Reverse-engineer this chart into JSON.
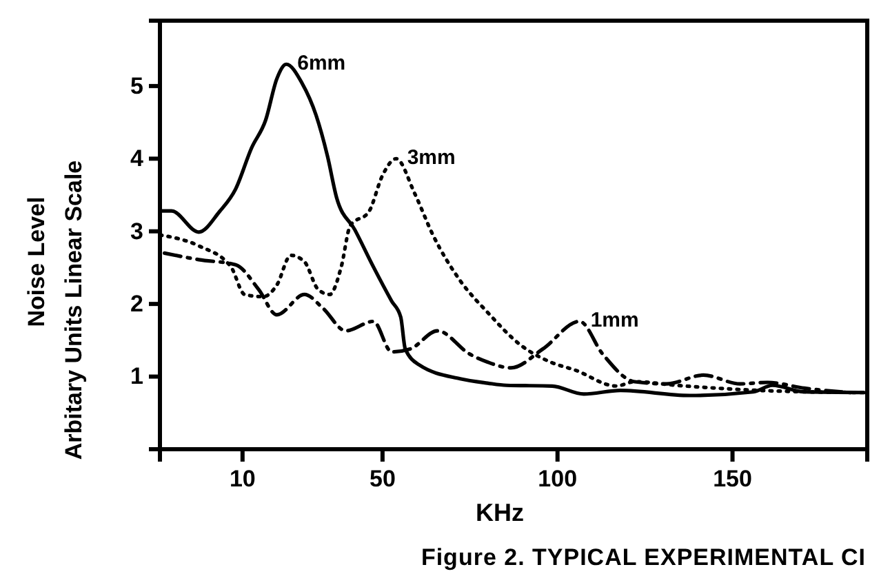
{
  "chart_data": {
    "type": "line",
    "xlabel": "KHz",
    "ylabel": "Noise Level\nArbitary Units Linear Scale",
    "xlim": [
      -13.6,
      188.5
    ],
    "xticks": [
      10,
      50,
      100,
      150
    ],
    "ylim": [
      0,
      5.9
    ],
    "yticks": [
      1,
      2,
      3,
      4,
      5
    ],
    "grid": false,
    "legend": false,
    "marker": "none",
    "annotations": [
      "Figure 2. TYPICAL EXPERIMENTAL CI"
    ],
    "series": [
      {
        "name": "6mm",
        "color": "#000000",
        "line_style": "solid",
        "x": [
          -13.6,
          -10.3,
          -2.5,
          3.4,
          8,
          12.6,
          16.6,
          19.8,
          22.5,
          27,
          31,
          34.3,
          36.9,
          42.1,
          47.4,
          52.6,
          55.2,
          56.5,
          60.5,
          72.2,
          80,
          85.4,
          98.5,
          107.5,
          118,
          137.8,
          156,
          161.4,
          170.4,
          187.6
        ],
        "values": [
          3.28,
          3.28,
          2.99,
          3.27,
          3.58,
          4.15,
          4.53,
          5.1,
          5.3,
          5.04,
          4.6,
          4.03,
          3.46,
          3.02,
          2.51,
          2.04,
          1.82,
          1.38,
          1.16,
          0.97,
          0.91,
          0.88,
          0.87,
          0.76,
          0.81,
          0.74,
          0.79,
          0.88,
          0.79,
          0.78
        ]
      },
      {
        "name": "3mm",
        "color": "#000000",
        "line_style": "dotted",
        "x": [
          -13.6,
          -2.5,
          6.7,
          10.6,
          15.9,
          19.8,
          23.8,
          27.7,
          31.6,
          34.9,
          38.2,
          40.8,
          46.1,
          50,
          53.9,
          59.2,
          64.4,
          72.2,
          80.1,
          89.3,
          98.5,
          105,
          116.8,
          122,
          133.9,
          157.5,
          187.6
        ],
        "values": [
          2.95,
          2.8,
          2.51,
          2.13,
          2.1,
          2.26,
          2.67,
          2.58,
          2.2,
          2.13,
          2.51,
          3.08,
          3.27,
          3.77,
          4.0,
          3.52,
          2.95,
          2.32,
          1.88,
          1.44,
          1.19,
          1.09,
          0.87,
          0.93,
          0.88,
          0.81,
          0.78
        ]
      },
      {
        "name": "1mm",
        "color": "#000000",
        "line_style": "dashed",
        "x": [
          -12.3,
          -2.5,
          8,
          14.6,
          19.8,
          27.7,
          33,
          39.5,
          47.4,
          52.6,
          57.9,
          65.7,
          74.9,
          80,
          86.7,
          95.8,
          106.3,
          112.9,
          122,
          131.2,
          141.7,
          152.2,
          160,
          170.6,
          183.7
        ],
        "values": [
          2.7,
          2.61,
          2.54,
          2.2,
          1.85,
          2.13,
          1.94,
          1.63,
          1.76,
          1.34,
          1.38,
          1.63,
          1.31,
          1.2,
          1.12,
          1.38,
          1.76,
          1.31,
          0.93,
          0.9,
          1.02,
          0.9,
          0.92,
          0.84,
          0.78
        ]
      }
    ]
  }
}
